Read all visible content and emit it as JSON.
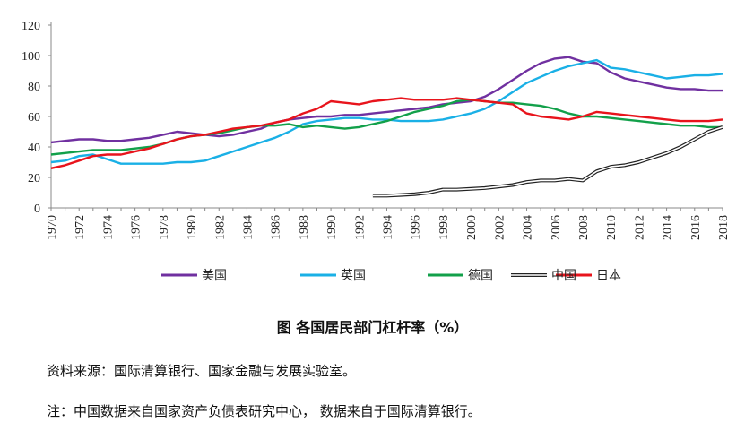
{
  "chart_data": {
    "type": "line",
    "title": "图  各国居民部门杠杆率（%）",
    "source": "资料来源：国际清算银行、国家金融与发展实验室。",
    "note": "注：中国数据来自国家资产负债表研究中心，  数据来自于国际清算银行。",
    "ylim": [
      0,
      120
    ],
    "yticks": [
      0,
      20,
      40,
      60,
      80,
      100,
      120
    ],
    "xlim": [
      1970,
      2018
    ],
    "xticks": [
      "1970",
      "1972",
      "1974",
      "1976",
      "1978",
      "1980",
      "1982",
      "1984",
      "1986",
      "1988",
      "1990",
      "1992",
      "1994",
      "1996",
      "1998",
      "2000",
      "2002",
      "2004",
      "2006",
      "2008",
      "2010",
      "2012",
      "2014",
      "2016",
      "2018"
    ],
    "grid": false,
    "legend": "bottom",
    "series": [
      {
        "name": "美国",
        "color": "#7030a0",
        "x": [
          1970,
          1971,
          1972,
          1973,
          1974,
          1975,
          1976,
          1977,
          1978,
          1979,
          1980,
          1981,
          1982,
          1983,
          1984,
          1985,
          1986,
          1987,
          1988,
          1989,
          1990,
          1991,
          1992,
          1993,
          1994,
          1995,
          1996,
          1997,
          1998,
          1999,
          2000,
          2001,
          2002,
          2003,
          2004,
          2005,
          2006,
          2007,
          2008,
          2009,
          2010,
          2011,
          2012,
          2013,
          2014,
          2015,
          2016,
          2017,
          2018
        ],
        "y": [
          43,
          44,
          45,
          45,
          44,
          44,
          45,
          46,
          48,
          50,
          49,
          48,
          47,
          48,
          50,
          52,
          56,
          58,
          59,
          60,
          60,
          61,
          61,
          62,
          63,
          64,
          65,
          66,
          68,
          69,
          70,
          73,
          78,
          84,
          90,
          95,
          98,
          99,
          96,
          95,
          89,
          85,
          83,
          81,
          79,
          78,
          78,
          77,
          77
        ]
      },
      {
        "name": "英国",
        "color": "#1ab0e6",
        "x": [
          1970,
          1971,
          1972,
          1973,
          1974,
          1975,
          1976,
          1977,
          1978,
          1979,
          1980,
          1981,
          1982,
          1983,
          1984,
          1985,
          1986,
          1987,
          1988,
          1989,
          1990,
          1991,
          1992,
          1993,
          1994,
          1995,
          1996,
          1997,
          1998,
          1999,
          2000,
          2001,
          2002,
          2003,
          2004,
          2005,
          2006,
          2007,
          2008,
          2009,
          2010,
          2011,
          2012,
          2013,
          2014,
          2015,
          2016,
          2017,
          2018
        ],
        "y": [
          30,
          31,
          34,
          35,
          32,
          29,
          29,
          29,
          29,
          30,
          30,
          31,
          34,
          37,
          40,
          43,
          46,
          50,
          55,
          57,
          58,
          59,
          59,
          58,
          58,
          57,
          57,
          57,
          58,
          60,
          62,
          65,
          70,
          76,
          82,
          86,
          90,
          93,
          95,
          97,
          92,
          91,
          89,
          87,
          85,
          86,
          87,
          87,
          88
        ]
      },
      {
        "name": "德国",
        "color": "#12a04a",
        "x": [
          1970,
          1971,
          1972,
          1973,
          1974,
          1975,
          1976,
          1977,
          1978,
          1979,
          1980,
          1981,
          1982,
          1983,
          1984,
          1985,
          1986,
          1987,
          1988,
          1989,
          1990,
          1991,
          1992,
          1993,
          1994,
          1995,
          1996,
          1997,
          1998,
          1999,
          2000,
          2001,
          2002,
          2003,
          2004,
          2005,
          2006,
          2007,
          2008,
          2009,
          2010,
          2011,
          2012,
          2013,
          2014,
          2015,
          2016,
          2017,
          2018
        ],
        "y": [
          35,
          36,
          37,
          38,
          38,
          38,
          39,
          40,
          42,
          45,
          47,
          48,
          49,
          51,
          53,
          54,
          54,
          55,
          53,
          54,
          53,
          52,
          53,
          55,
          57,
          60,
          63,
          65,
          67,
          70,
          71,
          70,
          69,
          69,
          68,
          67,
          65,
          62,
          60,
          60,
          59,
          58,
          57,
          56,
          55,
          54,
          54,
          53,
          53
        ]
      },
      {
        "name": "日本",
        "color": "#e8141c",
        "x": [
          1970,
          1971,
          1972,
          1973,
          1974,
          1975,
          1976,
          1977,
          1978,
          1979,
          1980,
          1981,
          1982,
          1983,
          1984,
          1985,
          1986,
          1987,
          1988,
          1989,
          1990,
          1991,
          1992,
          1993,
          1994,
          1995,
          1996,
          1997,
          1998,
          1999,
          2000,
          2001,
          2002,
          2003,
          2004,
          2005,
          2006,
          2007,
          2008,
          2009,
          2010,
          2011,
          2012,
          2013,
          2014,
          2015,
          2016,
          2017,
          2018
        ],
        "y": [
          26,
          28,
          31,
          34,
          35,
          35,
          37,
          39,
          42,
          45,
          47,
          48,
          50,
          52,
          53,
          54,
          56,
          58,
          62,
          65,
          70,
          69,
          68,
          70,
          71,
          72,
          71,
          71,
          71,
          72,
          71,
          70,
          69,
          68,
          62,
          60,
          59,
          58,
          60,
          63,
          62,
          61,
          60,
          59,
          58,
          57,
          57,
          57,
          58
        ]
      },
      {
        "name": "中国",
        "color": "#222222",
        "x": [
          1993,
          1994,
          1995,
          1996,
          1997,
          1998,
          1999,
          2000,
          2001,
          2002,
          2003,
          2004,
          2005,
          2006,
          2007,
          2008,
          2009,
          2010,
          2011,
          2012,
          2013,
          2014,
          2015,
          2016,
          2017,
          2018
        ],
        "y": [
          8,
          8,
          8.5,
          9,
          10,
          12,
          12,
          12.5,
          13,
          14,
          15,
          17,
          18,
          18,
          19,
          18,
          24,
          27,
          28,
          30,
          33,
          36,
          40,
          45,
          50,
          53
        ]
      }
    ]
  }
}
